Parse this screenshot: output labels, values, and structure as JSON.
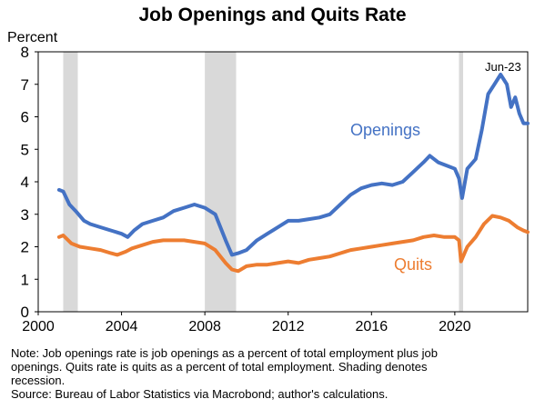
{
  "chart_data": {
    "type": "line",
    "title": "Job Openings and Quits Rate",
    "ylabel": "Percent",
    "xlabel": "",
    "ylim": [
      0,
      8
    ],
    "xlim": [
      2000,
      2023.5
    ],
    "y_ticks": [
      "0",
      "1",
      "2",
      "3",
      "4",
      "5",
      "6",
      "7",
      "8"
    ],
    "x_ticks": [
      "2000",
      "2004",
      "2008",
      "2012",
      "2016",
      "2020"
    ],
    "grid": false,
    "legend": "inline labels",
    "recessions": [
      [
        2001.2,
        2001.9
      ],
      [
        2008.0,
        2009.5
      ],
      [
        2020.2,
        2020.4
      ]
    ],
    "annotation": "Jun-23",
    "series": [
      {
        "name": "Openings",
        "color": "#4472C4",
        "points": [
          [
            2001.0,
            3.75
          ],
          [
            2001.2,
            3.7
          ],
          [
            2001.5,
            3.3
          ],
          [
            2001.8,
            3.1
          ],
          [
            2002.2,
            2.8
          ],
          [
            2002.5,
            2.7
          ],
          [
            2003.0,
            2.6
          ],
          [
            2003.5,
            2.5
          ],
          [
            2004.0,
            2.4
          ],
          [
            2004.3,
            2.3
          ],
          [
            2004.6,
            2.5
          ],
          [
            2005.0,
            2.7
          ],
          [
            2005.5,
            2.8
          ],
          [
            2006.0,
            2.9
          ],
          [
            2006.5,
            3.1
          ],
          [
            2007.0,
            3.2
          ],
          [
            2007.5,
            3.3
          ],
          [
            2008.0,
            3.2
          ],
          [
            2008.5,
            3.0
          ],
          [
            2009.0,
            2.2
          ],
          [
            2009.3,
            1.75
          ],
          [
            2009.6,
            1.8
          ],
          [
            2010.0,
            1.9
          ],
          [
            2010.5,
            2.2
          ],
          [
            2011.0,
            2.4
          ],
          [
            2011.5,
            2.6
          ],
          [
            2012.0,
            2.8
          ],
          [
            2012.5,
            2.8
          ],
          [
            2013.0,
            2.85
          ],
          [
            2013.5,
            2.9
          ],
          [
            2014.0,
            3.0
          ],
          [
            2014.5,
            3.3
          ],
          [
            2015.0,
            3.6
          ],
          [
            2015.5,
            3.8
          ],
          [
            2016.0,
            3.9
          ],
          [
            2016.5,
            3.95
          ],
          [
            2017.0,
            3.9
          ],
          [
            2017.5,
            4.0
          ],
          [
            2018.0,
            4.3
          ],
          [
            2018.5,
            4.6
          ],
          [
            2018.8,
            4.8
          ],
          [
            2019.2,
            4.6
          ],
          [
            2019.6,
            4.5
          ],
          [
            2020.0,
            4.4
          ],
          [
            2020.2,
            4.1
          ],
          [
            2020.35,
            3.5
          ],
          [
            2020.6,
            4.4
          ],
          [
            2021.0,
            4.7
          ],
          [
            2021.3,
            5.6
          ],
          [
            2021.6,
            6.7
          ],
          [
            2021.9,
            7.0
          ],
          [
            2022.2,
            7.3
          ],
          [
            2022.5,
            7.0
          ],
          [
            2022.7,
            6.3
          ],
          [
            2022.9,
            6.6
          ],
          [
            2023.1,
            6.1
          ],
          [
            2023.3,
            5.8
          ],
          [
            2023.5,
            5.8
          ]
        ]
      },
      {
        "name": "Quits",
        "color": "#ED7D31",
        "points": [
          [
            2001.0,
            2.3
          ],
          [
            2001.2,
            2.35
          ],
          [
            2001.6,
            2.1
          ],
          [
            2002.0,
            2.0
          ],
          [
            2002.5,
            1.95
          ],
          [
            2003.0,
            1.9
          ],
          [
            2003.5,
            1.8
          ],
          [
            2003.8,
            1.75
          ],
          [
            2004.2,
            1.85
          ],
          [
            2004.5,
            1.95
          ],
          [
            2005.0,
            2.05
          ],
          [
            2005.5,
            2.15
          ],
          [
            2006.0,
            2.2
          ],
          [
            2006.5,
            2.2
          ],
          [
            2007.0,
            2.2
          ],
          [
            2007.5,
            2.15
          ],
          [
            2008.0,
            2.1
          ],
          [
            2008.5,
            1.9
          ],
          [
            2009.0,
            1.5
          ],
          [
            2009.3,
            1.3
          ],
          [
            2009.6,
            1.25
          ],
          [
            2010.0,
            1.4
          ],
          [
            2010.5,
            1.45
          ],
          [
            2011.0,
            1.45
          ],
          [
            2011.5,
            1.5
          ],
          [
            2012.0,
            1.55
          ],
          [
            2012.5,
            1.5
          ],
          [
            2013.0,
            1.6
          ],
          [
            2013.5,
            1.65
          ],
          [
            2014.0,
            1.7
          ],
          [
            2014.5,
            1.8
          ],
          [
            2015.0,
            1.9
          ],
          [
            2015.5,
            1.95
          ],
          [
            2016.0,
            2.0
          ],
          [
            2016.5,
            2.05
          ],
          [
            2017.0,
            2.1
          ],
          [
            2017.5,
            2.15
          ],
          [
            2018.0,
            2.2
          ],
          [
            2018.5,
            2.3
          ],
          [
            2019.0,
            2.35
          ],
          [
            2019.5,
            2.3
          ],
          [
            2020.0,
            2.3
          ],
          [
            2020.2,
            2.2
          ],
          [
            2020.3,
            1.55
          ],
          [
            2020.6,
            2.0
          ],
          [
            2021.0,
            2.3
          ],
          [
            2021.4,
            2.7
          ],
          [
            2021.8,
            2.95
          ],
          [
            2022.2,
            2.9
          ],
          [
            2022.6,
            2.8
          ],
          [
            2023.0,
            2.6
          ],
          [
            2023.3,
            2.5
          ],
          [
            2023.5,
            2.45
          ]
        ]
      }
    ]
  },
  "notes": {
    "line1": "Note: Job openings rate is job openings as a percent of total employment plus job",
    "line2": "openings. Quits rate is quits as a percent of total employment. Shading denotes",
    "line3": "recession.",
    "source": "Source: Bureau of Labor Statistics via Macrobond; author's calculations."
  }
}
